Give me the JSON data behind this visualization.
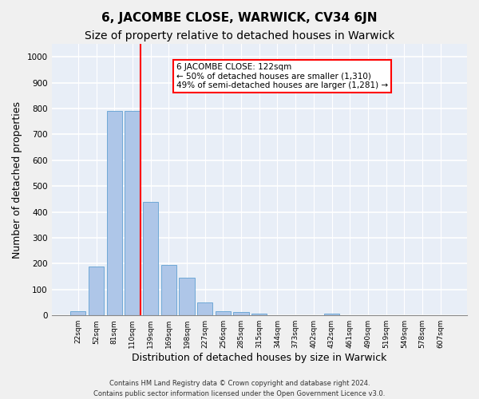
{
  "title1": "6, JACOMBE CLOSE, WARWICK, CV34 6JN",
  "title2": "Size of property relative to detached houses in Warwick",
  "xlabel": "Distribution of detached houses by size in Warwick",
  "ylabel": "Number of detached properties",
  "footnote1": "Contains HM Land Registry data © Crown copyright and database right 2024.",
  "footnote2": "Contains public sector information licensed under the Open Government Licence v3.0.",
  "annotation_line1": "6 JACOMBE CLOSE: 122sqm",
  "annotation_line2": "← 50% of detached houses are smaller (1,310)",
  "annotation_line3": "49% of semi-detached houses are larger (1,281) →",
  "bar_labels": [
    "22sqm",
    "52sqm",
    "81sqm",
    "110sqm",
    "139sqm",
    "169sqm",
    "198sqm",
    "227sqm",
    "256sqm",
    "285sqm",
    "315sqm",
    "344sqm",
    "373sqm",
    "402sqm",
    "432sqm",
    "461sqm",
    "490sqm",
    "519sqm",
    "549sqm",
    "578sqm",
    "607sqm"
  ],
  "bar_values": [
    15,
    190,
    790,
    790,
    440,
    195,
    145,
    50,
    15,
    12,
    8,
    0,
    0,
    0,
    8,
    0,
    0,
    0,
    0,
    0,
    0
  ],
  "bar_color": "#aec6e8",
  "bar_edgecolor": "#6fa8d6",
  "redline_index": 3,
  "ylim": [
    0,
    1050
  ],
  "yticks": [
    0,
    100,
    200,
    300,
    400,
    500,
    600,
    700,
    800,
    900,
    1000
  ],
  "background_color": "#e8eef7",
  "grid_color": "#ffffff",
  "title1_fontsize": 11,
  "title2_fontsize": 10,
  "xlabel_fontsize": 9,
  "ylabel_fontsize": 9
}
